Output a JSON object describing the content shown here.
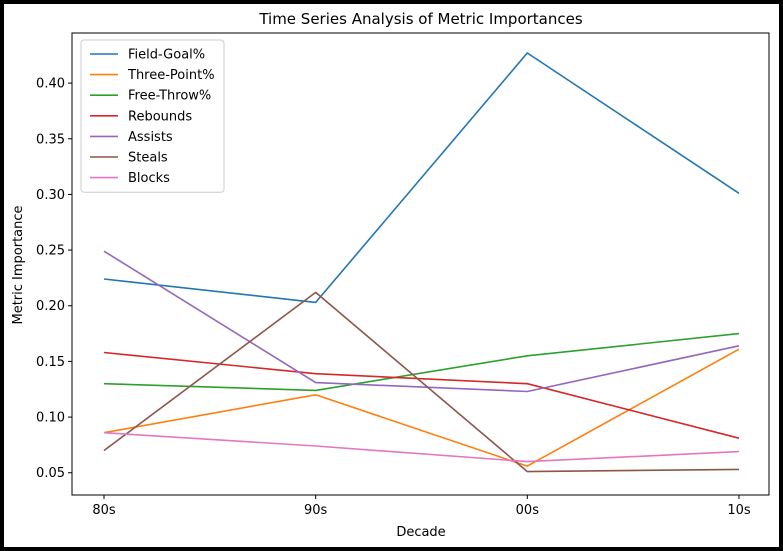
{
  "chart_data": {
    "type": "line",
    "title": "Time Series Analysis of Metric Importances",
    "xlabel": "Decade",
    "ylabel": "Metric Importance",
    "categories": [
      "80s",
      "90s",
      "00s",
      "10s"
    ],
    "ylim": [
      0.03,
      0.445
    ],
    "yticks": [
      0.05,
      0.1,
      0.15,
      0.2,
      0.25,
      0.3,
      0.35,
      0.4
    ],
    "ytick_labels": [
      "0.05",
      "0.10",
      "0.15",
      "0.20",
      "0.25",
      "0.30",
      "0.35",
      "0.40"
    ],
    "grid": false,
    "legend_position": "top-left",
    "series": [
      {
        "name": "Field-Goal%",
        "color": "#1f77b4",
        "values": [
          0.224,
          0.203,
          0.427,
          0.301
        ]
      },
      {
        "name": "Three-Point%",
        "color": "#ff7f0e",
        "values": [
          0.086,
          0.12,
          0.056,
          0.161
        ]
      },
      {
        "name": "Free-Throw%",
        "color": "#2ca02c",
        "values": [
          0.13,
          0.124,
          0.155,
          0.175
        ]
      },
      {
        "name": "Rebounds",
        "color": "#d62728",
        "values": [
          0.158,
          0.139,
          0.13,
          0.081
        ]
      },
      {
        "name": "Assists",
        "color": "#9467bd",
        "values": [
          0.249,
          0.131,
          0.123,
          0.164
        ]
      },
      {
        "name": "Steals",
        "color": "#8c564b",
        "values": [
          0.07,
          0.212,
          0.051,
          0.053
        ]
      },
      {
        "name": "Blocks",
        "color": "#e377c2",
        "values": [
          0.086,
          0.074,
          0.06,
          0.069
        ]
      }
    ]
  }
}
